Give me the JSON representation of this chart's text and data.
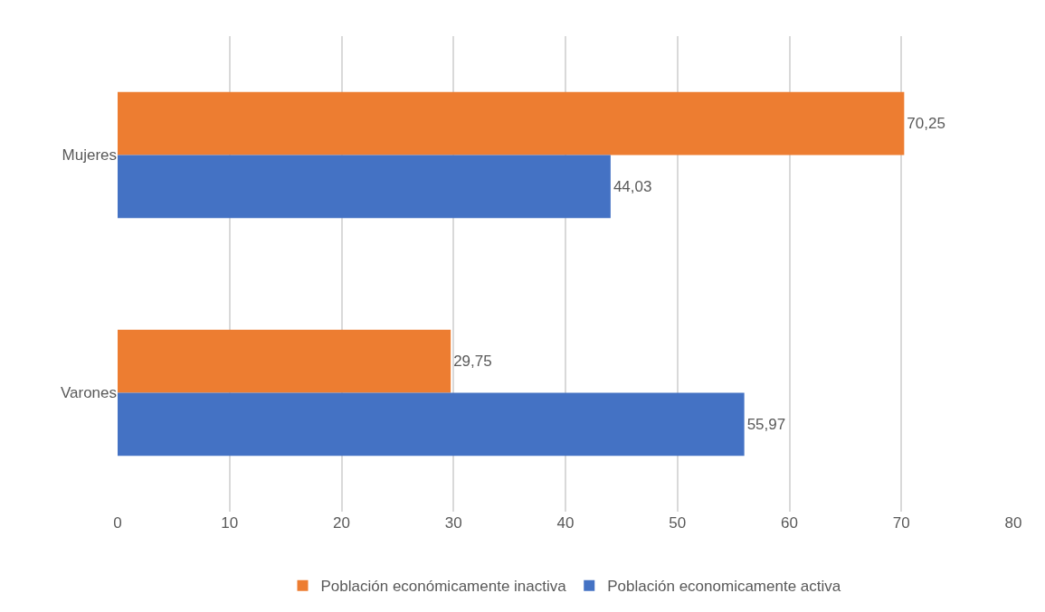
{
  "chart_data": {
    "type": "bar",
    "orientation": "horizontal",
    "categories": [
      "Mujeres",
      "Varones"
    ],
    "series": [
      {
        "name": "Población económicamente inactiva",
        "color": "#ed7d31",
        "values": [
          70.25,
          29.75
        ],
        "value_labels": [
          "70,25",
          "29,75"
        ]
      },
      {
        "name": "Población economicamente activa",
        "color": "#4472c4",
        "values": [
          44.03,
          55.97
        ],
        "value_labels": [
          "44,03",
          "55,97"
        ]
      }
    ],
    "xlim": [
      0,
      80
    ],
    "xticks": [
      0,
      10,
      20,
      30,
      40,
      50,
      60,
      70,
      80
    ],
    "grid": "x",
    "legend": "bottom"
  }
}
